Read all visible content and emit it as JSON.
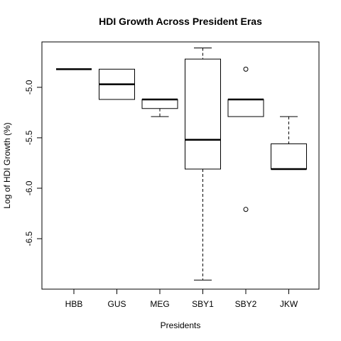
{
  "chart_data": {
    "type": "boxplot",
    "title": "HDI Growth Across President Eras",
    "xlabel": "Presidents",
    "ylabel": "Log of HDI Growth (%)",
    "ylim": [
      -7.0,
      -4.55
    ],
    "yticks": [
      "-5.0",
      "-5.5",
      "-6.0",
      "-6.5"
    ],
    "ytick_values": [
      -5.0,
      -5.5,
      -6.0,
      -6.5
    ],
    "categories": [
      "HBB",
      "GUS",
      "MEG",
      "SBY1",
      "SBY2",
      "JKW"
    ],
    "boxes": [
      {
        "name": "HBB",
        "whisker_low": -4.82,
        "q1": -4.82,
        "median": -4.82,
        "q3": -4.82,
        "whisker_high": -4.82,
        "outliers": []
      },
      {
        "name": "GUS",
        "whisker_low": -5.12,
        "q1": -5.12,
        "median": -4.97,
        "q3": -4.82,
        "whisker_high": -4.82,
        "outliers": []
      },
      {
        "name": "MEG",
        "whisker_low": -5.29,
        "q1": -5.21,
        "median": -5.12,
        "q3": -5.12,
        "whisker_high": -5.12,
        "outliers": []
      },
      {
        "name": "SBY1",
        "whisker_low": -6.91,
        "q1": -5.81,
        "median": -5.52,
        "q3": -4.72,
        "whisker_high": -4.61,
        "outliers": []
      },
      {
        "name": "SBY2",
        "whisker_low": -5.29,
        "q1": -5.29,
        "median": -5.12,
        "q3": -5.12,
        "whisker_high": -5.12,
        "outliers": [
          -4.82,
          -6.21
        ]
      },
      {
        "name": "JKW",
        "whisker_low": -5.81,
        "q1": -5.81,
        "median": -5.81,
        "q3": -5.56,
        "whisker_high": -5.29,
        "outliers": []
      }
    ],
    "grid": false,
    "legend": "none"
  }
}
